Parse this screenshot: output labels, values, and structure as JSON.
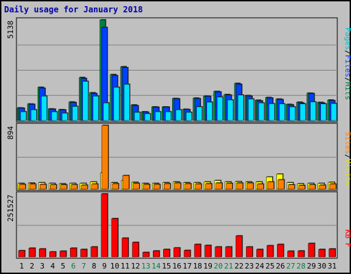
{
  "chart_data": {
    "type": "bar",
    "title": "Daily usage for January 2018",
    "days": [
      "1",
      "2",
      "3",
      "4",
      "5",
      "6",
      "7",
      "8",
      "9",
      "10",
      "11",
      "12",
      "13",
      "14",
      "15",
      "16",
      "17",
      "18",
      "19",
      "20",
      "21",
      "22",
      "23",
      "24",
      "25",
      "26",
      "27",
      "28",
      "29",
      "30",
      "31"
    ],
    "weekend_days": [
      "6",
      "7",
      "13",
      "14",
      "20",
      "21",
      "27",
      "28"
    ],
    "panels": [
      {
        "ymax_label": "5138",
        "ymax": 5138,
        "legend": [
          "Pages",
          "/",
          "Files",
          "/",
          "Hits"
        ],
        "series": [
          {
            "name": "Hits",
            "color": "#008040",
            "values": [
              650,
              850,
              1700,
              600,
              560,
              950,
              2200,
              1420,
              5138,
              2350,
              2750,
              800,
              450,
              700,
              700,
              1130,
              580,
              1150,
              1250,
              1490,
              1330,
              1900,
              1280,
              1040,
              1180,
              1100,
              830,
              940,
              1400,
              930,
              1050
            ]
          },
          {
            "name": "Files",
            "color": "#0040ff",
            "values": [
              630,
              830,
              1650,
              580,
              540,
              920,
              2150,
              1380,
              4750,
              2300,
              2700,
              760,
              430,
              680,
              690,
              1110,
              560,
              1120,
              1230,
              1460,
              1300,
              1850,
              1250,
              1000,
              1150,
              1070,
              800,
              900,
              1380,
              900,
              1020
            ]
          },
          {
            "name": "Pages",
            "color": "#00e0ff",
            "values": [
              450,
              550,
              1250,
              450,
              380,
              720,
              2000,
              1250,
              900,
              1700,
              1850,
              420,
              350,
              450,
              450,
              550,
              420,
              700,
              940,
              1200,
              1050,
              1300,
              1100,
              900,
              860,
              850,
              700,
              850,
              950,
              850,
              870
            ]
          }
        ]
      },
      {
        "ymax_label": "894",
        "ymax": 894,
        "legend": [
          "Sites",
          "/",
          "Visits"
        ],
        "series": [
          {
            "name": "Visits",
            "color": "#ffff00",
            "values": [
              80,
              85,
              90,
              80,
              75,
              80,
              80,
              100,
              230,
              90,
              120,
              95,
              80,
              80,
              90,
              100,
              90,
              90,
              100,
              120,
              100,
              105,
              100,
              100,
              170,
              210,
              90,
              75,
              80,
              80,
              95
            ]
          },
          {
            "name": "Sites",
            "color": "#ff8000",
            "values": [
              65,
              70,
              65,
              60,
              60,
              60,
              55,
              70,
              894,
              75,
              190,
              80,
              65,
              65,
              75,
              85,
              75,
              70,
              75,
              85,
              80,
              85,
              85,
              70,
              100,
              130,
              60,
              50,
              60,
              55,
              70
            ]
          }
        ]
      },
      {
        "ymax_label": "251527",
        "ymax": 251527,
        "legend": [
          "KB",
          "F"
        ],
        "series": [
          {
            "name": "KBytes",
            "color": "#ff0000",
            "values": [
              25000,
              35000,
              32000,
              20000,
              23000,
              35000,
              30000,
              40000,
              251527,
              153000,
              75000,
              58000,
              18000,
              24000,
              30000,
              36000,
              26000,
              50000,
              46000,
              40000,
              40000,
              84000,
              40000,
              30000,
              45000,
              50000,
              23000,
              24000,
              54000,
              30000,
              32000
            ]
          }
        ]
      }
    ]
  }
}
